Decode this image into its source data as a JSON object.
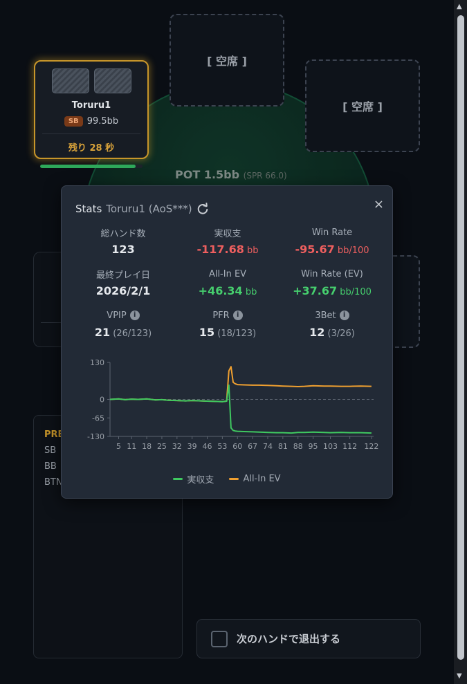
{
  "table": {
    "empty_seat_label": "[ 空席 ]",
    "pot_label": "POT 1.5bb",
    "spr_label": "(SPR 66.0)"
  },
  "active_seat": {
    "name": "Toruru1",
    "position": "SB",
    "stack": "99.5bb",
    "timer_text": "残り 28 秒",
    "timer_fraction": 0.93
  },
  "action_log": {
    "title": "PRE",
    "lines": [
      "SB",
      "BB",
      "BTN"
    ]
  },
  "leave_option": {
    "label": "次のハンドで退出する",
    "checked": false
  },
  "stats_popup": {
    "title": "Stats",
    "player": "Toruru1 (AoS***)",
    "close_symbol": "×",
    "cells": [
      {
        "label": "総ハンド数",
        "value": "123",
        "unit": "",
        "sub": "",
        "tone": "neutral"
      },
      {
        "label": "実収支",
        "value": "-117.68",
        "unit": "bb",
        "sub": "",
        "tone": "neg"
      },
      {
        "label": "Win Rate",
        "value": "-95.67",
        "unit": "bb/100",
        "sub": "",
        "tone": "neg"
      },
      {
        "label": "最終プレイ日",
        "value": "2026/2/1",
        "unit": "",
        "sub": "",
        "tone": "neutral"
      },
      {
        "label": "All-In EV",
        "value": "+46.34",
        "unit": "bb",
        "sub": "",
        "tone": "pos"
      },
      {
        "label": "Win Rate (EV)",
        "value": "+37.67",
        "unit": "bb/100",
        "sub": "",
        "tone": "pos"
      },
      {
        "label": "VPIP",
        "value": "21",
        "unit": "",
        "sub": "(26/123)",
        "tone": "neutral",
        "info": true
      },
      {
        "label": "PFR",
        "value": "15",
        "unit": "",
        "sub": "(18/123)",
        "tone": "neutral",
        "info": true
      },
      {
        "label": "3Bet",
        "value": "12",
        "unit": "",
        "sub": "(3/26)",
        "tone": "neutral",
        "info": true
      }
    ]
  },
  "chart_data": {
    "type": "line",
    "xlabel": "",
    "ylabel": "",
    "ylim": [
      -130,
      130
    ],
    "y_ticks": [
      "130",
      "0",
      "-65",
      "-130"
    ],
    "x_ticks": [
      "5",
      "11",
      "18",
      "25",
      "32",
      "39",
      "46",
      "53",
      "60",
      "67",
      "74",
      "81",
      "88",
      "95",
      "103",
      "112",
      "122"
    ],
    "x_tick_values": [
      5,
      11,
      18,
      25,
      32,
      39,
      46,
      53,
      60,
      67,
      74,
      81,
      88,
      95,
      103,
      112,
      122
    ],
    "xlim": [
      1,
      123
    ],
    "legend_position": "bottom",
    "series": [
      {
        "name": "実収支",
        "color": "#3fc860",
        "x": [
          1,
          5,
          8,
          11,
          14,
          18,
          22,
          25,
          28,
          32,
          36,
          39,
          43,
          46,
          50,
          53,
          55,
          56,
          57,
          58,
          59,
          60,
          63,
          67,
          70,
          74,
          78,
          81,
          85,
          88,
          91,
          95,
          100,
          103,
          108,
          112,
          117,
          122
        ],
        "y": [
          0,
          2,
          -1,
          1,
          0,
          2,
          -2,
          -1,
          -3,
          -4,
          -5,
          -4,
          -5,
          -6,
          -7,
          -8,
          -6,
          50,
          -100,
          -109,
          -111,
          -112,
          -113,
          -114,
          -115,
          -116,
          -117,
          -117,
          -118,
          -116,
          -116,
          -115,
          -116,
          -117,
          -116,
          -117,
          -117,
          -118
        ]
      },
      {
        "name": "All-In EV",
        "color": "#f0a030",
        "x": [
          1,
          5,
          8,
          11,
          14,
          18,
          22,
          25,
          28,
          32,
          36,
          39,
          43,
          46,
          50,
          53,
          55,
          56,
          57,
          58,
          59,
          60,
          63,
          67,
          70,
          74,
          78,
          81,
          85,
          88,
          91,
          95,
          100,
          103,
          108,
          112,
          117,
          122
        ],
        "y": [
          0,
          2,
          -1,
          1,
          0,
          2,
          -2,
          -1,
          -3,
          -4,
          -5,
          -4,
          -5,
          -6,
          -7,
          -8,
          -6,
          100,
          115,
          60,
          55,
          52,
          51,
          50,
          50,
          49,
          48,
          47,
          46,
          45,
          46,
          48,
          47,
          47,
          46,
          46,
          47,
          46
        ]
      }
    ]
  }
}
